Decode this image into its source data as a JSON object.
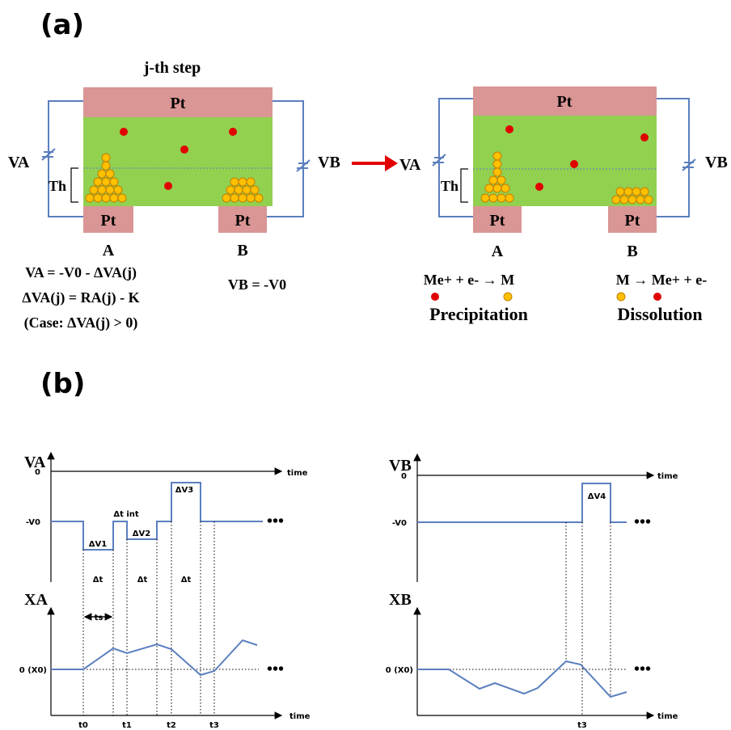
{
  "panel_a": {
    "label": "(a)",
    "left": {
      "step_title": "j-th step",
      "top_electrode": "Pt",
      "electrode_a": "Pt",
      "electrode_b": "Pt",
      "voltage_a": "VA",
      "voltage_b": "VB",
      "threshold": "Th",
      "node_a": "A",
      "node_b": "B",
      "eq_va": "VA = -V0 - ΔVA(j)",
      "eq_dva": "ΔVA(j) = RA(j) - K",
      "eq_case": "(Case: ΔVA(j) > 0)",
      "eq_vb": "VB = -V0"
    },
    "right": {
      "top_electrode": "Pt",
      "electrode_a": "Pt",
      "electrode_b": "Pt",
      "voltage_a": "VA",
      "voltage_b": "VB",
      "threshold": "Th",
      "node_a": "A",
      "node_b": "B",
      "reaction_a": "Me+ + e- → M",
      "reaction_b": "M → Me+ + e-",
      "process_a": "Precipitation",
      "process_b": "Dissolution"
    }
  },
  "panel_b": {
    "label": "(b)",
    "left": {
      "v_axis": "VA",
      "v_zero": "0",
      "v_rest": "-V0",
      "time_top": "time",
      "dv1": "ΔV1",
      "dt_int": "Δt int",
      "dv2": "ΔV2",
      "dv3": "ΔV3",
      "dt_1": "Δt",
      "dt_2": "Δt",
      "dt_3": "Δt",
      "dots_top": "•••",
      "x_axis": "XA",
      "ts": "ts",
      "x_zero": "0 (X0)",
      "dots_bottom": "•••",
      "time_bottom": "time",
      "t0": "t0",
      "t1": "t1",
      "t2": "t2",
      "t3": "t3"
    },
    "right": {
      "v_axis": "VB",
      "v_zero": "0",
      "v_rest": "-V0",
      "time_top": "time",
      "dv4": "ΔV4",
      "dots_top": "•••",
      "x_axis": "XB",
      "x_zero": "0 (X0)",
      "dots_bottom": "•••",
      "time_bottom": "time",
      "t3": "t3"
    }
  }
}
